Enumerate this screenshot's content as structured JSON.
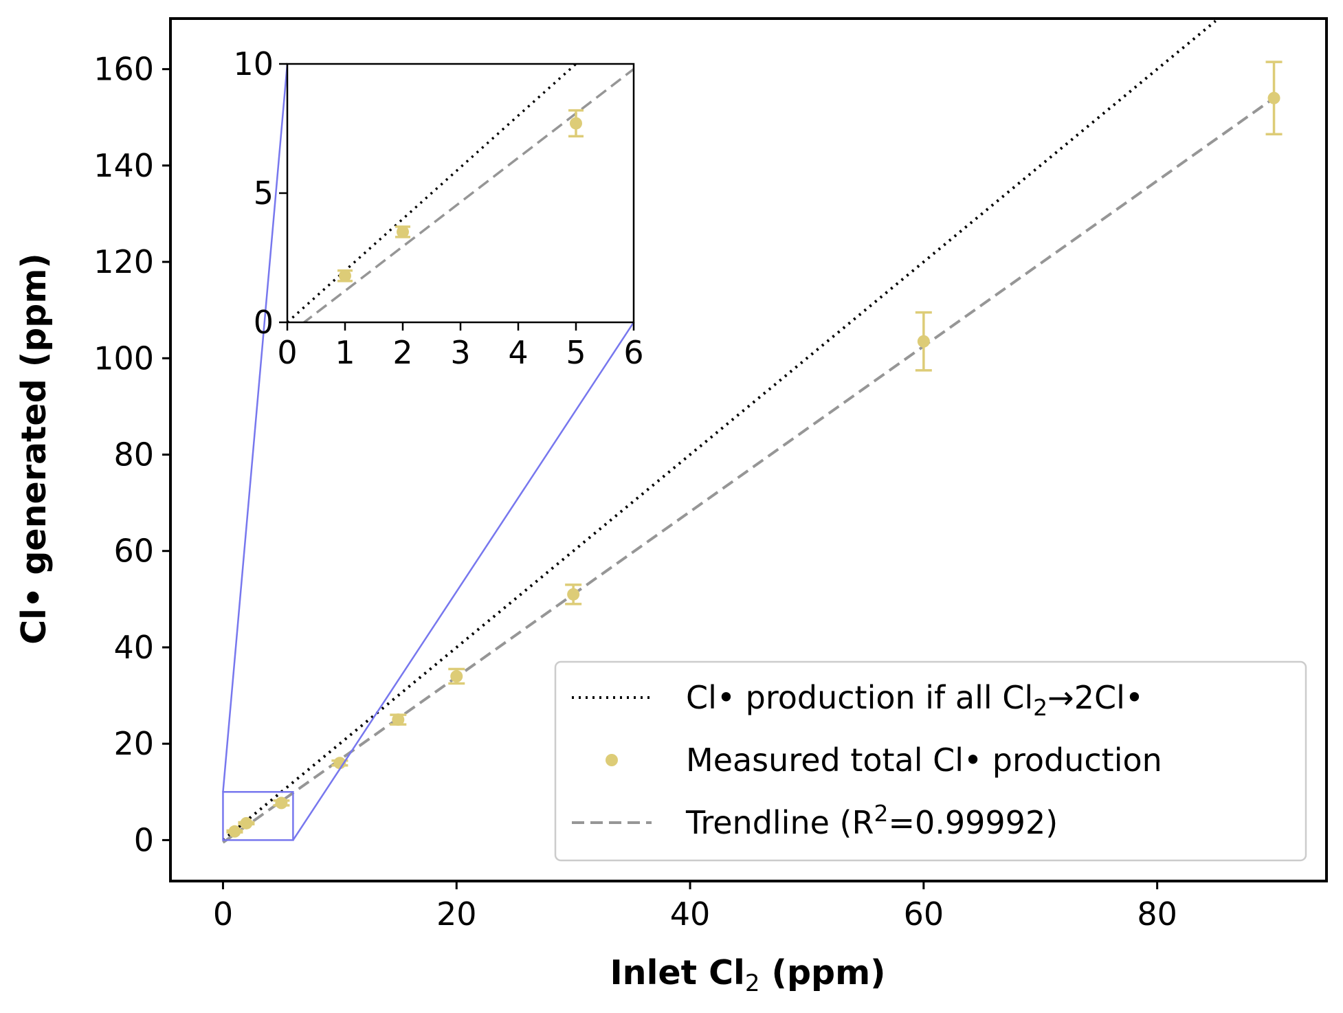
{
  "chart_data": {
    "type": "scatter",
    "xlabel": "Inlet Cl",
    "xlabel_sub": "2",
    "xlabel_unit": " (ppm)",
    "ylabel": "Cl• generated (ppm)",
    "xlim": [
      -4.5,
      94.5
    ],
    "ylim": [
      -8.5,
      170.5
    ],
    "xticks": [
      0,
      20,
      40,
      60,
      80
    ],
    "yticks": [
      0,
      20,
      40,
      60,
      80,
      100,
      120,
      140,
      160
    ],
    "grid": false,
    "legend_placement": "lower-right",
    "series": [
      {
        "name": "Cl• production if all Cl2→2Cl•",
        "kind": "line",
        "style": "dotted",
        "color": "#000000",
        "x": [
          0,
          85
        ],
        "y": [
          0,
          170
        ]
      },
      {
        "name": "Measured total Cl• production",
        "kind": "scatter",
        "color": "#ddcc77",
        "points": [
          {
            "x": 1,
            "y": 1.8,
            "err": 0.2
          },
          {
            "x": 2,
            "y": 3.5,
            "err": 0.2
          },
          {
            "x": 5,
            "y": 7.7,
            "err": 0.5
          },
          {
            "x": 10,
            "y": 16.0,
            "err": 0.5
          },
          {
            "x": 15,
            "y": 25.0,
            "err": 1.0
          },
          {
            "x": 20,
            "y": 34.0,
            "err": 1.5
          },
          {
            "x": 30,
            "y": 51.0,
            "err": 2.0
          },
          {
            "x": 60,
            "y": 103.5,
            "err": 6.0
          },
          {
            "x": 90,
            "y": 154.0,
            "err": 7.5
          }
        ]
      },
      {
        "name": "Trendline (R2=0.99992)",
        "kind": "line",
        "style": "dashed",
        "color": "#969696",
        "x": [
          0,
          90
        ],
        "y": [
          -0.5,
          154
        ]
      }
    ],
    "legend": [
      {
        "text": "Cl• production if all Cl",
        "sub": "2",
        "text2": "→2Cl•",
        "marker": "dotted-line",
        "color": "#000000"
      },
      {
        "text": "Measured total Cl• production",
        "marker": "dot",
        "color": "#ddcc77"
      },
      {
        "text": "Trendline (R",
        "sup": "2",
        "text2": "=0.99992)",
        "marker": "dashed-line",
        "color": "#969696"
      }
    ],
    "zoom_region": {
      "x": [
        0,
        6
      ],
      "y": [
        0,
        10
      ],
      "color": "#7777ee"
    },
    "inset": {
      "xlim": [
        0,
        6
      ],
      "ylim": [
        0,
        10
      ],
      "xticks": [
        0,
        1,
        2,
        3,
        4,
        5,
        6
      ],
      "yticks": [
        0,
        5,
        10
      ]
    }
  }
}
